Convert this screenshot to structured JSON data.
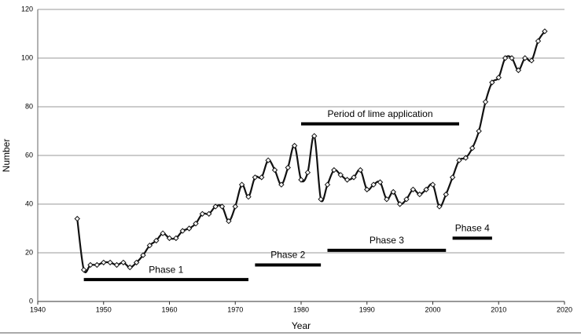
{
  "chart_data": {
    "type": "line",
    "x_label": "Year",
    "y_label": "Number",
    "x": [
      1946,
      1947,
      1948,
      1949,
      1950,
      1951,
      1952,
      1953,
      1954,
      1955,
      1956,
      1957,
      1958,
      1959,
      1960,
      1961,
      1962,
      1963,
      1964,
      1965,
      1966,
      1967,
      1968,
      1969,
      1970,
      1971,
      1972,
      1973,
      1974,
      1975,
      1976,
      1977,
      1978,
      1979,
      1980,
      1981,
      1982,
      1983,
      1984,
      1985,
      1986,
      1987,
      1988,
      1989,
      1990,
      1991,
      1992,
      1993,
      1994,
      1995,
      1996,
      1997,
      1998,
      1999,
      2000,
      2001,
      2002,
      2003,
      2004,
      2005,
      2006,
      2007,
      2008,
      2009,
      2010,
      2011,
      2012,
      2013,
      2014,
      2015,
      2016,
      2017
    ],
    "series": [
      {
        "color": "#111111",
        "values": [
          34,
          13,
          15,
          15,
          16,
          16,
          15,
          16,
          14,
          16,
          19,
          23,
          25,
          28,
          26,
          26,
          29,
          30,
          32,
          36,
          36,
          39,
          39,
          33,
          39,
          48,
          43,
          51,
          51,
          58,
          54,
          48,
          55,
          64,
          50,
          53,
          68,
          42,
          48,
          54,
          52,
          50,
          51,
          54,
          46,
          48,
          49,
          42,
          45,
          40,
          42,
          46,
          44,
          46,
          48,
          39,
          44,
          51,
          58,
          59,
          63,
          70,
          82,
          90,
          92,
          100,
          100,
          95,
          100,
          99,
          107,
          111
        ]
      }
    ],
    "xlim": [
      1940,
      2020
    ],
    "xticks": [
      1940,
      1950,
      1960,
      1970,
      1980,
      1990,
      2000,
      2010,
      2020
    ],
    "ylim": [
      0,
      120
    ],
    "yticks": [
      0,
      20,
      40,
      60,
      80,
      100,
      120
    ],
    "grid": true,
    "annotations": [
      {
        "text": "Period of lime application",
        "x": [
          1980,
          2004
        ],
        "y": 73
      },
      {
        "text": "Phase 1",
        "x": [
          1947,
          1972
        ],
        "y": 9
      },
      {
        "text": "Phase 2",
        "x": [
          1973,
          1983
        ],
        "y": 15
      },
      {
        "text": "Phase 3",
        "x": [
          1984,
          2002
        ],
        "y": 21
      },
      {
        "text": "Phase 4",
        "x": [
          2003,
          2009
        ],
        "y": 26
      }
    ]
  }
}
